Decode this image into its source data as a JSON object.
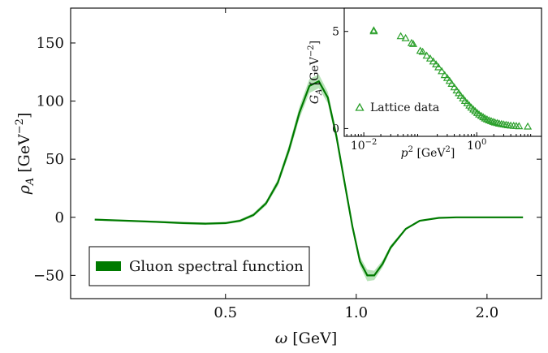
{
  "colors": {
    "curve": "#007a00",
    "band": "#9fd99f",
    "marker": "#2ca02c",
    "axis": "#000000"
  },
  "chart_data": [
    {
      "id": "main",
      "type": "line",
      "title": "",
      "xlabel_base": "ω",
      "xlabel_rest": " [GeV]",
      "ylabel_base": "ρ",
      "ylabel_sub": "A",
      "ylabel_rest": " [GeV",
      "ylabel_sup": "−2",
      "ylabel_close": "]",
      "xaxis_ticks": [
        {
          "value": 0.5,
          "label": "0.5"
        },
        {
          "value": 1.0,
          "label": "1.0"
        },
        {
          "value": 2.0,
          "label": "2.0"
        }
      ],
      "yaxis_ticks": [
        {
          "value": -50,
          "label": "−50"
        },
        {
          "value": 0,
          "label": "0"
        },
        {
          "value": 50,
          "label": "50"
        },
        {
          "value": 100,
          "label": "100"
        },
        {
          "value": 150,
          "label": "150"
        }
      ],
      "xscale": "log",
      "xlim": [
        0.22,
        2.67
      ],
      "ylim": [
        -70,
        180
      ],
      "grid": false,
      "legend_position": "bottom-left",
      "series": [
        {
          "name": "Gluon spectral function",
          "x": [
            0.25,
            0.3,
            0.35,
            0.4,
            0.45,
            0.5,
            0.54,
            0.58,
            0.62,
            0.66,
            0.7,
            0.74,
            0.78,
            0.82,
            0.86,
            0.9,
            0.94,
            0.98,
            1.02,
            1.06,
            1.1,
            1.15,
            1.2,
            1.3,
            1.4,
            1.55,
            1.7,
            1.85,
            2.0,
            2.2,
            2.42
          ],
          "y": [
            -2,
            -3,
            -4,
            -5,
            -5.5,
            -5,
            -3,
            2,
            12,
            30,
            58,
            90,
            113,
            117,
            103,
            70,
            30,
            -8,
            -38,
            -50,
            -50,
            -40,
            -26,
            -10,
            -3,
            -0.5,
            0,
            0,
            0,
            0,
            0
          ],
          "band_upper": [
            -1.5,
            -2.5,
            -3.2,
            -4.0,
            -4.5,
            -4.0,
            -1.8,
            3.5,
            14,
            33,
            62,
            95,
            119,
            123,
            108,
            74,
            33,
            -5,
            -34,
            -45,
            -46,
            -37,
            -24,
            -9,
            -2.5,
            -0.3,
            0.2,
            0.2,
            0.2,
            0.2,
            0.2
          ],
          "band_lower": [
            -2.5,
            -3.5,
            -4.8,
            -6.0,
            -6.5,
            -6.0,
            -4.2,
            0.5,
            10,
            27,
            54,
            85,
            107,
            111,
            98,
            66,
            27,
            -11,
            -42,
            -55,
            -54,
            -43,
            -28,
            -11,
            -3.5,
            -0.7,
            -0.2,
            -0.2,
            -0.2,
            -0.2,
            -0.2
          ]
        }
      ]
    },
    {
      "id": "inset",
      "type": "scatter",
      "title": "",
      "xlabel_base": "p",
      "xlabel_sup": "2",
      "xlabel_rest": " [GeV",
      "xlabel_sup2": "2",
      "xlabel_close": "]",
      "ylabel_base": "G",
      "ylabel_sub": "A",
      "ylabel_rest": " [GeV",
      "ylabel_sup": "−2",
      "ylabel_close": "]",
      "xscale": "log",
      "xlim": [
        0.0045,
        14
      ],
      "ylim": [
        -0.4,
        6.2
      ],
      "xaxis_ticks": [
        {
          "value": 0.01,
          "base": "10",
          "exp": "−2"
        },
        {
          "value": 1,
          "base": "10",
          "exp": "0"
        }
      ],
      "yaxis_ticks": [
        {
          "value": 0,
          "label": "0"
        },
        {
          "value": 5,
          "label": "5"
        }
      ],
      "legend_position": "center-left",
      "series": [
        {
          "name": "Lattice data",
          "marker": "triangle-open",
          "x": [
            0.015,
            0.015,
            0.045,
            0.055,
            0.07,
            0.075,
            0.1,
            0.11,
            0.13,
            0.15,
            0.17,
            0.19,
            0.21,
            0.24,
            0.27,
            0.3,
            0.33,
            0.36,
            0.4,
            0.44,
            0.48,
            0.52,
            0.57,
            0.62,
            0.68,
            0.74,
            0.8,
            0.87,
            0.94,
            1.02,
            1.1,
            1.2,
            1.3,
            1.4,
            1.52,
            1.65,
            1.8,
            1.95,
            2.1,
            2.3,
            2.5,
            2.75,
            3.0,
            3.3,
            3.6,
            4.0,
            4.5,
            5.0,
            5.6,
            8.0
          ],
          "y": [
            5.05,
            5.0,
            4.75,
            4.65,
            4.4,
            4.35,
            4.0,
            3.95,
            3.75,
            3.6,
            3.45,
            3.3,
            3.15,
            2.95,
            2.75,
            2.6,
            2.45,
            2.3,
            2.12,
            1.96,
            1.82,
            1.68,
            1.55,
            1.42,
            1.3,
            1.18,
            1.08,
            0.98,
            0.89,
            0.8,
            0.72,
            0.65,
            0.58,
            0.52,
            0.47,
            0.42,
            0.38,
            0.34,
            0.31,
            0.28,
            0.25,
            0.23,
            0.21,
            0.19,
            0.17,
            0.15,
            0.14,
            0.13,
            0.12,
            0.1
          ]
        }
      ]
    }
  ]
}
